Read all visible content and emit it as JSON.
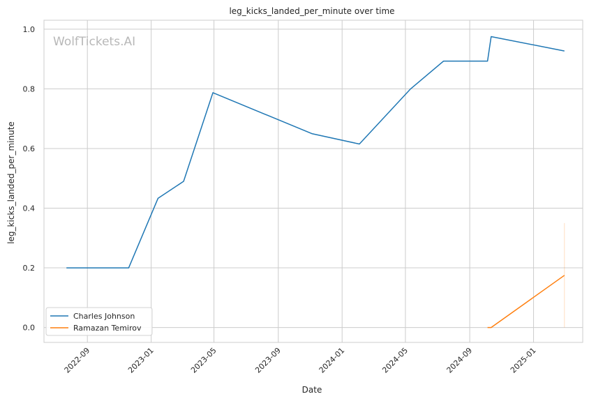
{
  "chart_data": {
    "type": "line",
    "title": "leg_kicks_landed_per_minute over time",
    "xlabel": "Date",
    "ylabel": "leg_kicks_landed_per_minute",
    "watermark": "WolfTickets.AI",
    "x_range": [
      "2022-06-10",
      "2025-04-05"
    ],
    "ylim": [
      -0.05,
      1.03
    ],
    "x_ticks": [
      "2022-09",
      "2023-01",
      "2023-05",
      "2023-09",
      "2024-01",
      "2024-05",
      "2024-09",
      "2025-01"
    ],
    "y_ticks": [
      0.0,
      0.2,
      0.4,
      0.6,
      0.8,
      1.0
    ],
    "y_tick_labels": [
      "0.0",
      "0.2",
      "0.4",
      "0.6",
      "0.8",
      "1.0"
    ],
    "grid": true,
    "legend_position": "lower-left",
    "series": [
      {
        "name": "Charles Johnson",
        "color": "#1f77b4",
        "points": [
          {
            "x": "2022-07-23",
            "y": 0.2
          },
          {
            "x": "2022-11-19",
            "y": 0.2
          },
          {
            "x": "2023-01-14",
            "y": 0.433
          },
          {
            "x": "2023-03-04",
            "y": 0.49
          },
          {
            "x": "2023-04-29",
            "y": 0.787
          },
          {
            "x": "2023-11-04",
            "y": 0.65
          },
          {
            "x": "2024-02-03",
            "y": 0.615
          },
          {
            "x": "2024-05-11",
            "y": 0.8
          },
          {
            "x": "2024-07-13",
            "y": 0.893
          },
          {
            "x": "2024-10-05",
            "y": 0.893
          },
          {
            "x": "2024-10-12",
            "y": 0.975
          },
          {
            "x": "2025-03-01",
            "y": 0.927
          }
        ]
      },
      {
        "name": "Ramazan Temirov",
        "color": "#ff7f0e",
        "points": [
          {
            "x": "2024-10-05",
            "y": 0.0
          },
          {
            "x": "2024-10-12",
            "y": 0.0
          },
          {
            "x": "2025-03-01",
            "y": 0.175
          }
        ],
        "band": {
          "x": "2025-03-01",
          "low": 0.0,
          "high": 0.35
        }
      }
    ]
  }
}
